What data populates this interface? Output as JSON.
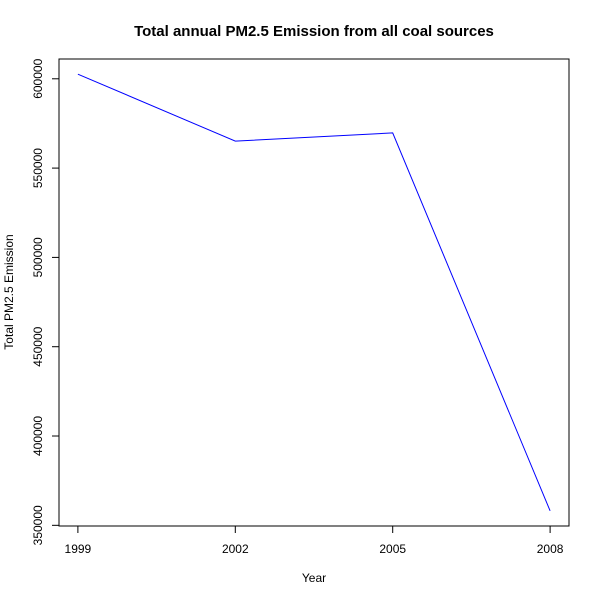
{
  "chart_data": {
    "type": "line",
    "title": "Total annual PM2.5 Emission from all coal sources",
    "xlabel": "Year",
    "ylabel": "Total PM2.5 Emission",
    "x": [
      1999,
      2002,
      2005,
      2008
    ],
    "series": [
      {
        "values": [
          602600,
          565100,
          569700,
          358100
        ],
        "color": "#0000ff"
      }
    ],
    "xticks": [
      1999,
      2002,
      2005,
      2008
    ],
    "xtick_labels": [
      "1999",
      "2002",
      "2005",
      "2008"
    ],
    "yticks": [
      350000,
      400000,
      450000,
      500000,
      550000,
      600000
    ],
    "ytick_labels": [
      "350000",
      "400000",
      "450000",
      "500000",
      "550000",
      "600000"
    ],
    "xlim": [
      1998.64,
      2008.36
    ],
    "ylim": [
      349620,
      611080
    ],
    "grid": false,
    "legend": "none"
  }
}
